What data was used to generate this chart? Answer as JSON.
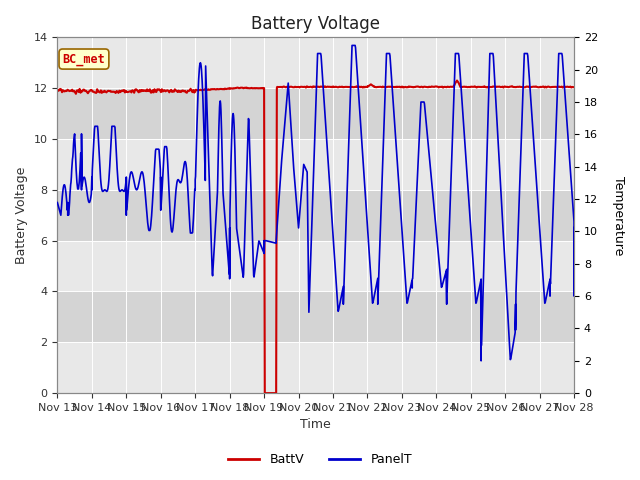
{
  "title": "Battery Voltage",
  "xlabel": "Time",
  "ylabel_left": "Battery Voltage",
  "ylabel_right": "Temperature",
  "xlim": [
    0,
    15
  ],
  "ylim_left": [
    0,
    14
  ],
  "ylim_right": [
    0,
    22
  ],
  "x_tick_labels": [
    "Nov 13",
    "Nov 14",
    "Nov 15",
    "Nov 16",
    "Nov 17",
    "Nov 18",
    "Nov 19",
    "Nov 20",
    "Nov 21",
    "Nov 22",
    "Nov 23",
    "Nov 24",
    "Nov 25",
    "Nov 26",
    "Nov 27",
    "Nov 28"
  ],
  "background_color": "#ffffff",
  "plot_bg_colors": [
    "#e8e8e8",
    "#d8d8d8"
  ],
  "battv_color": "#cc0000",
  "panelt_color": "#0000cc",
  "annotation_box_color": "#ffffcc",
  "annotation_text_color": "#cc0000",
  "annotation_border_color": "#996600",
  "title_fontsize": 12,
  "axis_label_fontsize": 9,
  "tick_label_fontsize": 8,
  "legend_fontsize": 9
}
